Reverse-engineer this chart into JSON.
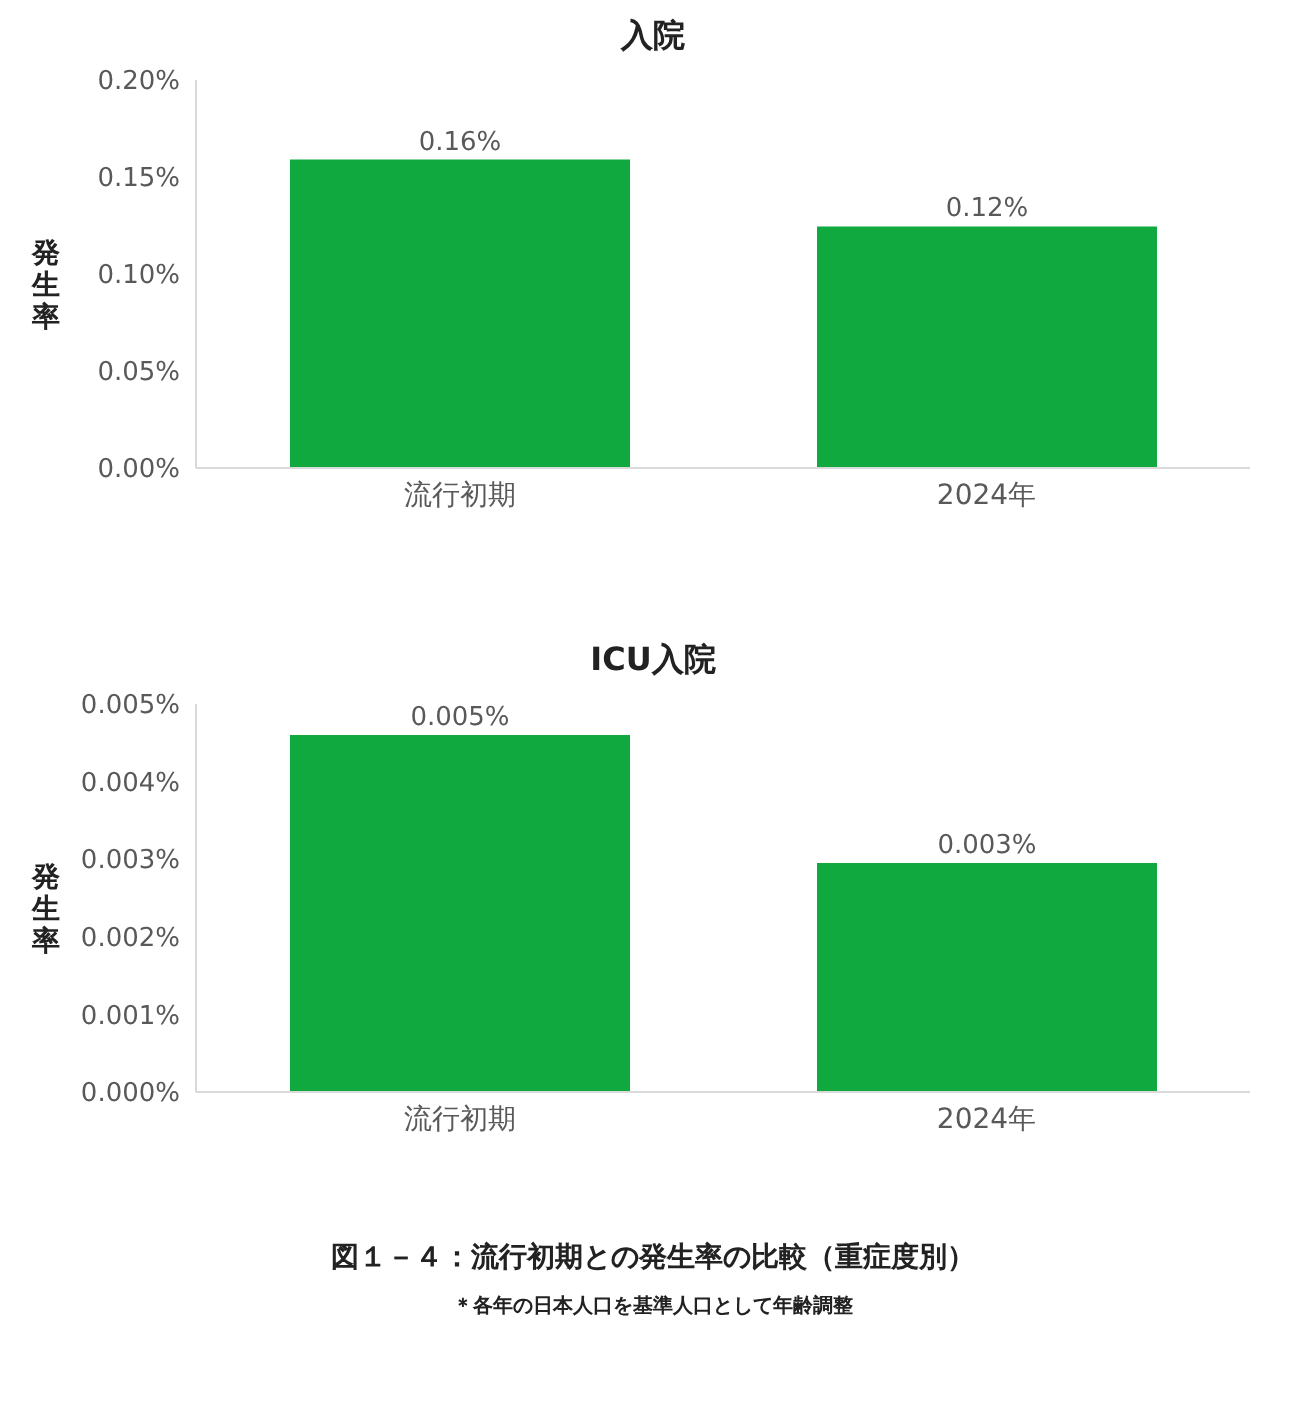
{
  "chart_data": [
    {
      "type": "bar",
      "title": "入院",
      "ylabel": "発生率",
      "categories": [
        "流行初期",
        "2024年"
      ],
      "values": [
        0.159,
        0.1245
      ],
      "color": "#10a93f",
      "value_labels": [
        "0.16%",
        "0.12%"
      ],
      "ylim": [
        0,
        0.2
      ],
      "yticks": [
        {
          "value": 0,
          "label": "0.00%"
        },
        {
          "value": 0.05,
          "label": "0.05%"
        },
        {
          "value": 0.1,
          "label": "0.10%"
        },
        {
          "value": 0.15,
          "label": "0.15%"
        },
        {
          "value": 0.2,
          "label": "0.20%"
        }
      ],
      "grid": false,
      "legend": false
    },
    {
      "type": "bar",
      "title": "ICU入院",
      "ylabel": "発生率",
      "categories": [
        "流行初期",
        "2024年"
      ],
      "values": [
        0.0046,
        0.00295
      ],
      "color": "#10a93f",
      "value_labels": [
        "0.005%",
        "0.003%"
      ],
      "ylim": [
        0,
        0.005
      ],
      "yticks": [
        {
          "value": 0,
          "label": "0.000%"
        },
        {
          "value": 0.001,
          "label": "0.001%"
        },
        {
          "value": 0.002,
          "label": "0.002%"
        },
        {
          "value": 0.003,
          "label": "0.003%"
        },
        {
          "value": 0.004,
          "label": "0.004%"
        },
        {
          "value": 0.005,
          "label": "0.005%"
        }
      ],
      "grid": false,
      "legend": false,
      "annotations": [
        "図１－４：流行初期との発生率の比較（重症度別）",
        "＊各年の日本人口を基準人口として年齢調整"
      ]
    }
  ]
}
